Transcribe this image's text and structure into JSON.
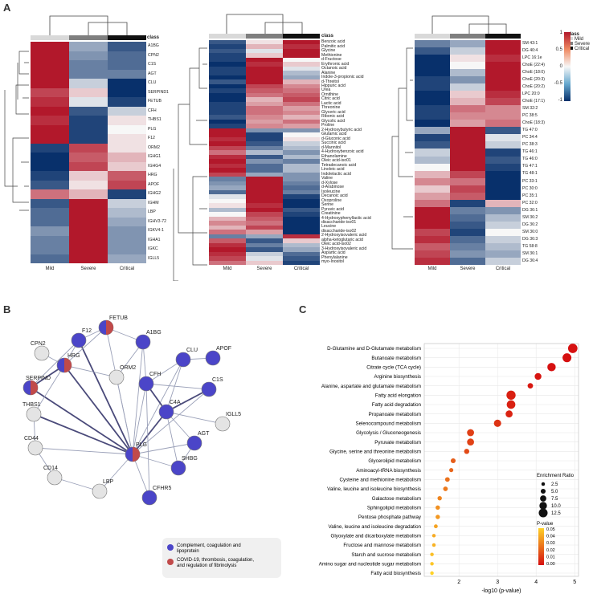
{
  "panel_labels": {
    "a": "A",
    "b": "B",
    "c": "C"
  },
  "heatmap_colors": {
    "low": "#08306b",
    "mid": "#f7f7f7",
    "high": "#b2182b"
  },
  "class_colors": {
    "mild": "#d9d9d9",
    "severe": "#7f7f7f",
    "critical": "#111111"
  },
  "heatmaps": [
    {
      "class_label": "class",
      "columns": [
        "Mild",
        "Severe",
        "Critical"
      ],
      "rows": [
        "A1BG",
        "CPN2",
        "C1S",
        "AGT",
        "CLU",
        "SERPIND1",
        "FETUB",
        "CFH",
        "THBS1",
        "PLG",
        "F12",
        "ORM2",
        "IGHG1",
        "IGHG4",
        "HRG",
        "APOF",
        "IGHG2",
        "IGHM",
        "LBP",
        "IGHV3-72",
        "IGKV4-1",
        "IGHA1",
        "IGKC",
        "IGLL5"
      ],
      "values": [
        [
          1.1,
          -0.4,
          -0.8
        ],
        [
          1.1,
          -0.5,
          -0.7
        ],
        [
          1.1,
          -0.6,
          -0.7
        ],
        [
          1.1,
          -0.6,
          -0.6
        ],
        [
          1.0,
          -0.2,
          -1.0
        ],
        [
          0.8,
          0.2,
          -1.0
        ],
        [
          0.9,
          -0.1,
          -0.9
        ],
        [
          1.0,
          -0.8,
          -0.2
        ],
        [
          0.9,
          -0.9,
          0.1
        ],
        [
          1.0,
          -0.9,
          0.0
        ],
        [
          1.0,
          -0.9,
          0.1
        ],
        [
          -0.9,
          0.8,
          0.1
        ],
        [
          -1.0,
          0.7,
          0.3
        ],
        [
          -1.0,
          0.8,
          0.2
        ],
        [
          -0.9,
          0.2,
          0.7
        ],
        [
          -0.8,
          0.1,
          0.8
        ],
        [
          0.6,
          0.3,
          -0.9
        ],
        [
          -0.8,
          1.0,
          -0.2
        ],
        [
          -0.7,
          1.0,
          -0.3
        ],
        [
          -0.7,
          1.0,
          -0.4
        ],
        [
          -0.5,
          1.1,
          -0.5
        ],
        [
          -0.6,
          1.1,
          -0.5
        ],
        [
          -0.6,
          1.1,
          -0.5
        ],
        [
          -0.7,
          1.1,
          -0.4
        ]
      ]
    },
    {
      "class_label": "class",
      "columns": [
        "Mild",
        "Severe",
        "Critical"
      ],
      "rows": [
        "Benzoic acid",
        "Palmitic acid",
        "Glycine",
        "Methionine",
        "d-Fructose",
        "Erythronic acid",
        "Octanoic acid",
        "Alanine",
        "Indole-3-propionic acid",
        "d-Threitol",
        "Hippuric acid",
        "Urea",
        "Ornithine",
        "Citric acid",
        "Lactic acid",
        "Threonine",
        "Glyceric acid",
        "Ribonic acid",
        "Glycolic acid",
        "Proline",
        "2-Hydroxybutyric acid",
        "Glutamic acid",
        "d-Gluconic acid",
        "Succinic acid",
        "d-Mannitol",
        "4-Hydroxybenzoic acid",
        "Ethanolamine",
        "Oleic acid-iso01",
        "Tetradecanoic acid",
        "Linoleic acid",
        "Indolelactic acid",
        "Valine",
        "d-Xylose",
        "d-Arabinose",
        "Isoleucine",
        "Decanoic acid",
        "Oxoproline",
        "Serine",
        "Pyruvic acid",
        "Creatinine",
        "4-Hydroxyphenyllactic acid",
        "disaccharide-iso01",
        "Leucine",
        "disaccharide-iso02",
        "2-Hydroxyisovaleric acid",
        "alpha-ketoglutaric acid",
        "Oleic acid-iso02",
        "3-Hydroxyisovaleric acid",
        "Aspartic acid",
        "Phenylalanine",
        "myo-Inositol"
      ],
      "values": [
        [
          -0.8,
          0.1,
          1.0
        ],
        [
          -0.9,
          0.3,
          0.9
        ],
        [
          -0.8,
          -0.1,
          1.1
        ],
        [
          -0.9,
          0.2,
          1.0
        ],
        [
          -0.9,
          1.0,
          0.0
        ],
        [
          -1.0,
          0.9,
          0.2
        ],
        [
          -0.9,
          1.0,
          -0.1
        ],
        [
          -0.9,
          1.1,
          -0.3
        ],
        [
          -1.0,
          1.0,
          -0.4
        ],
        [
          -0.8,
          1.1,
          0.3
        ],
        [
          -1.0,
          0.8,
          0.5
        ],
        [
          -0.9,
          0.7,
          0.6
        ],
        [
          -1.0,
          0.6,
          0.7
        ],
        [
          -1.0,
          0.3,
          0.8
        ],
        [
          -0.9,
          0.4,
          0.6
        ],
        [
          -0.9,
          0.6,
          0.4
        ],
        [
          -0.9,
          0.6,
          0.5
        ],
        [
          -0.8,
          0.5,
          0.3
        ],
        [
          -1.0,
          0.4,
          0.6
        ],
        [
          -0.9,
          0.5,
          0.4
        ],
        [
          1.0,
          -0.5,
          -0.5
        ],
        [
          1.0,
          -0.9,
          0.0
        ],
        [
          0.9,
          -0.9,
          0.1
        ],
        [
          1.0,
          -0.8,
          -0.2
        ],
        [
          0.8,
          -0.6,
          -0.3
        ],
        [
          0.6,
          -0.3,
          -0.5
        ],
        [
          0.9,
          -0.8,
          -0.3
        ],
        [
          1.0,
          -0.5,
          -0.6
        ],
        [
          0.9,
          -0.7,
          -0.3
        ],
        [
          1.0,
          -0.7,
          -0.3
        ],
        [
          0.8,
          -0.4,
          -0.5
        ],
        [
          -0.6,
          1.1,
          -0.5
        ],
        [
          -0.5,
          1.1,
          -0.6
        ],
        [
          -0.4,
          1.1,
          -0.7
        ],
        [
          -0.7,
          1.1,
          -0.6
        ],
        [
          -0.1,
          1.0,
          -0.9
        ],
        [
          0.0,
          1.0,
          -1.0
        ],
        [
          0.1,
          0.9,
          -1.0
        ],
        [
          -0.3,
          1.0,
          -0.8
        ],
        [
          0.0,
          0.8,
          -0.9
        ],
        [
          0.3,
          0.7,
          -1.0
        ],
        [
          0.5,
          0.6,
          -1.0
        ],
        [
          0.3,
          0.8,
          -1.0
        ],
        [
          0.6,
          0.4,
          -1.0
        ],
        [
          -0.6,
          -0.4,
          0.9
        ],
        [
          0.7,
          -0.8,
          0.2
        ],
        [
          0.9,
          -0.6,
          -0.3
        ],
        [
          1.0,
          -0.8,
          -0.4
        ],
        [
          0.9,
          -0.2,
          -0.7
        ],
        [
          0.8,
          -0.1,
          -0.8
        ],
        [
          0.6,
          0.2,
          -0.9
        ]
      ]
    },
    {
      "class_label": "class",
      "columns": [
        "Mild",
        "Severe",
        "Critical"
      ],
      "rows": [
        "SM 43:1",
        "DG 40:4",
        "LPC 16:1e",
        "ChoE (22:4)",
        "ChoE (18:0)",
        "ChoE (20:3)",
        "ChoE (20:2)",
        "LPC 20:0",
        "ChoE (17:1)",
        "SM 32:2",
        "PC 38:5",
        "ChoE (18:3)",
        "TG 47:0",
        "PC 34:4",
        "PC 38:3",
        "TG 46:1",
        "TG 46:0",
        "TG 47:1",
        "TG 48:1",
        "PC 33:1",
        "PC 30:0",
        "PC 35:1",
        "PC 32:0",
        "DG 36:1",
        "SM 36:2",
        "DG 36:2",
        "SM 36:0",
        "DG 36:3",
        "TG 58:8",
        "SM 36:1",
        "DG 36:4"
      ],
      "values": [
        [
          -0.6,
          -0.4,
          1.0
        ],
        [
          -0.8,
          -0.2,
          1.0
        ],
        [
          -1.0,
          0.1,
          0.9
        ],
        [
          -1.0,
          0.0,
          1.0
        ],
        [
          -1.0,
          -0.3,
          1.1
        ],
        [
          -0.9,
          -0.5,
          1.1
        ],
        [
          -0.9,
          -0.2,
          1.0
        ],
        [
          -1.0,
          0.2,
          0.9
        ],
        [
          -1.0,
          0.3,
          0.8
        ],
        [
          -0.9,
          0.6,
          0.5
        ],
        [
          -0.9,
          0.5,
          0.5
        ],
        [
          -1.0,
          0.4,
          0.6
        ],
        [
          -0.4,
          1.1,
          -0.8
        ],
        [
          -0.9,
          1.0,
          -0.1
        ],
        [
          -0.8,
          1.0,
          -0.2
        ],
        [
          -0.2,
          1.0,
          -0.9
        ],
        [
          -0.3,
          1.0,
          -0.8
        ],
        [
          0.0,
          1.0,
          -0.9
        ],
        [
          0.3,
          0.8,
          -1.0
        ],
        [
          0.5,
          0.6,
          -1.0
        ],
        [
          0.2,
          0.8,
          -1.0
        ],
        [
          0.4,
          0.7,
          -1.0
        ],
        [
          0.6,
          -0.9,
          0.3
        ],
        [
          1.0,
          -0.6,
          -0.5
        ],
        [
          1.0,
          -0.7,
          -0.3
        ],
        [
          1.0,
          -0.8,
          -0.2
        ],
        [
          0.8,
          -0.9,
          0.0
        ],
        [
          0.9,
          -0.7,
          -0.2
        ],
        [
          0.7,
          -0.6,
          -0.3
        ],
        [
          0.8,
          -0.5,
          -0.4
        ],
        [
          0.9,
          -0.7,
          -0.2
        ]
      ]
    }
  ],
  "class_legend": {
    "title": "class",
    "entries": [
      "Mild",
      "Severe",
      "Critical"
    ]
  },
  "colorbar_ticks": [
    "1",
    "0.5",
    "0",
    "-0.5",
    "-1"
  ],
  "network": {
    "nodes": [
      "FETUB",
      "F12",
      "A1BG",
      "CPN2",
      "HRG",
      "ORM2",
      "CLU",
      "APOF",
      "SERPIND",
      "CFH",
      "C1S",
      "C4A",
      "THBS1",
      "IGLL5",
      "CD44",
      "AGT",
      "PLG",
      "SHBG",
      "CD14",
      "LBP",
      "CFHR5"
    ],
    "legend": [
      {
        "label": "Complement, coagulation and lipoprotein",
        "color": "#4b45c8"
      },
      {
        "label": "COVID-19, thrombosis, coagulation, and regulation of fibrinolysis",
        "color": "#c14a4a"
      }
    ]
  },
  "chart_data": {
    "type": "scatter",
    "title": "",
    "xlabel": "-log10 (p-value)",
    "ylabel": "",
    "xlim": [
      1.1,
      5.1
    ],
    "xticks": [
      2,
      3,
      4,
      5
    ],
    "categories": [
      "D-Glutamine and D-Glutamate metabolism",
      "Butanoate metabolism",
      "Citrate cycle (TCA cycle)",
      "Arginine biosynthesis",
      "Alanine, aspartate and glutamate metabolism",
      "Fatty acid elongation",
      "Fatty acid degradation",
      "Propanoate metabolism",
      "Selenocompound metabolism",
      "Glycolysis / Gluconeogenesis",
      "Pyruvate metabolism",
      "Glycine, serine and threonine metabolism",
      "Glycerolipid metabolism",
      "Aminoacyl-tRNA biosynthesis",
      "Cysteine and methionine metabolism",
      "Valine, leucine and isoleucine biosynthesis",
      "Galactose metabolism",
      "Sphingolipid metabolism",
      "Pentose phosphate pathway",
      "Valine, leucine and isoleucine degradation",
      "Glyoxylate and dicarboxylate metabolism",
      "Fructose and mannose metabolism",
      "Starch and sucrose metabolism",
      "Amino sugar and nucleotide sugar metabolism",
      "Fatty acid biosynthesis"
    ],
    "x": [
      4.95,
      4.8,
      4.4,
      4.05,
      3.85,
      3.35,
      3.35,
      3.3,
      3.0,
      2.3,
      2.3,
      2.2,
      1.85,
      1.8,
      1.7,
      1.65,
      1.5,
      1.45,
      1.45,
      1.4,
      1.35,
      1.35,
      1.3,
      1.3,
      1.3
    ],
    "enrichment_ratio": [
      13.5,
      12.5,
      11.5,
      8.5,
      6.0,
      13.0,
      12.0,
      9.0,
      9.5,
      9.0,
      9.0,
      5.5,
      5.0,
      3.5,
      4.5,
      4.5,
      4.0,
      4.0,
      4.0,
      3.0,
      2.5,
      2.5,
      2.5,
      2.5,
      2.5
    ],
    "p_value": [
      0.0,
      0.0,
      0.0,
      0.001,
      0.002,
      0.004,
      0.004,
      0.005,
      0.009,
      0.012,
      0.013,
      0.015,
      0.02,
      0.022,
      0.025,
      0.027,
      0.03,
      0.033,
      0.035,
      0.038,
      0.04,
      0.042,
      0.045,
      0.047,
      0.05
    ],
    "size_legend": {
      "title": "Enrichment Ratio",
      "values": [
        "2.5",
        "5.0",
        "7.5",
        "10.0",
        "12.5"
      ]
    },
    "color_legend": {
      "title": "P-value",
      "values": [
        "0.05",
        "0.04",
        "0.03",
        "0.02",
        "0.01",
        "0.00"
      ]
    }
  }
}
